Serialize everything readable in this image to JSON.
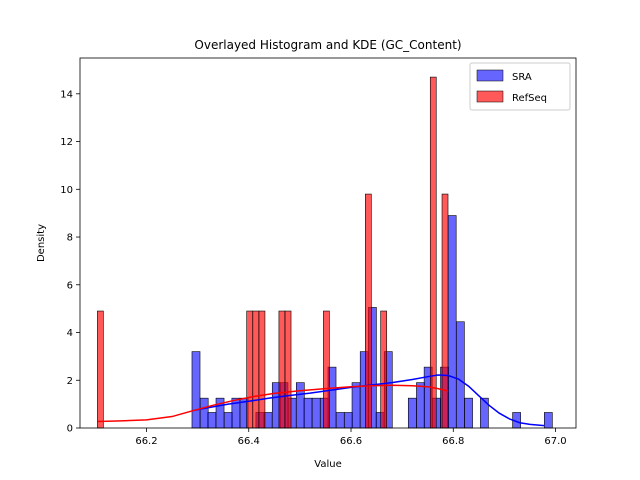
{
  "chart_data": {
    "type": "histogram",
    "title": "Overlayed Histogram and KDE (GC_Content)",
    "xlabel": "Value",
    "ylabel": "Density",
    "xlim": [
      66.07,
      67.04
    ],
    "ylim": [
      0,
      15.5
    ],
    "xticks": [
      66.2,
      66.4,
      66.6,
      66.8,
      67.0
    ],
    "xtick_labels": [
      "66.2",
      "66.4",
      "66.6",
      "66.8",
      "67.0"
    ],
    "yticks": [
      0,
      2,
      4,
      6,
      8,
      10,
      12,
      14
    ],
    "ytick_labels": [
      "0",
      "2",
      "4",
      "6",
      "8",
      "10",
      "12",
      "14"
    ],
    "legend_position": "upper right",
    "grid": false,
    "series": [
      {
        "name": "SRA",
        "color": "#0000ff",
        "alpha": 0.6,
        "bin_width": 0.0157,
        "bins": [
          {
            "x0": 66.289,
            "h": 3.2
          },
          {
            "x0": 66.305,
            "h": 1.25
          },
          {
            "x0": 66.32,
            "h": 0.65
          },
          {
            "x0": 66.336,
            "h": 1.25
          },
          {
            "x0": 66.352,
            "h": 0.65
          },
          {
            "x0": 66.367,
            "h": 1.25
          },
          {
            "x0": 66.383,
            "h": 1.25
          },
          {
            "x0": 66.399,
            "h": 0.0
          },
          {
            "x0": 66.414,
            "h": 0.65
          },
          {
            "x0": 66.43,
            "h": 0.65
          },
          {
            "x0": 66.446,
            "h": 1.9
          },
          {
            "x0": 66.461,
            "h": 1.9
          },
          {
            "x0": 66.477,
            "h": 1.25
          },
          {
            "x0": 66.493,
            "h": 1.9
          },
          {
            "x0": 66.508,
            "h": 1.25
          },
          {
            "x0": 66.524,
            "h": 1.25
          },
          {
            "x0": 66.54,
            "h": 1.25
          },
          {
            "x0": 66.555,
            "h": 2.55
          },
          {
            "x0": 66.571,
            "h": 0.65
          },
          {
            "x0": 66.587,
            "h": 0.65
          },
          {
            "x0": 66.602,
            "h": 1.9
          },
          {
            "x0": 66.618,
            "h": 3.2
          },
          {
            "x0": 66.634,
            "h": 5.05
          },
          {
            "x0": 66.649,
            "h": 0.65
          },
          {
            "x0": 66.665,
            "h": 3.2
          },
          {
            "x0": 66.681,
            "h": 0.0
          },
          {
            "x0": 66.696,
            "h": 0.0
          },
          {
            "x0": 66.712,
            "h": 1.25
          },
          {
            "x0": 66.728,
            "h": 1.9
          },
          {
            "x0": 66.743,
            "h": 2.55
          },
          {
            "x0": 66.759,
            "h": 1.25
          },
          {
            "x0": 66.775,
            "h": 2.55
          },
          {
            "x0": 66.79,
            "h": 8.9
          },
          {
            "x0": 66.806,
            "h": 4.45
          },
          {
            "x0": 66.822,
            "h": 1.25
          },
          {
            "x0": 66.837,
            "h": 0.0
          },
          {
            "x0": 66.853,
            "h": 1.25
          },
          {
            "x0": 66.869,
            "h": 0.0
          },
          {
            "x0": 66.884,
            "h": 0.0
          },
          {
            "x0": 66.9,
            "h": 0.0
          },
          {
            "x0": 66.916,
            "h": 0.65
          },
          {
            "x0": 66.931,
            "h": 0.0
          },
          {
            "x0": 66.947,
            "h": 0.0
          },
          {
            "x0": 66.963,
            "h": 0.0
          },
          {
            "x0": 66.978,
            "h": 0.65
          }
        ],
        "kde": [
          [
            66.289,
            0.72
          ],
          [
            66.32,
            0.85
          ],
          [
            66.36,
            1.0
          ],
          [
            66.4,
            1.12
          ],
          [
            66.44,
            1.25
          ],
          [
            66.48,
            1.36
          ],
          [
            66.52,
            1.46
          ],
          [
            66.56,
            1.58
          ],
          [
            66.6,
            1.7
          ],
          [
            66.64,
            1.8
          ],
          [
            66.68,
            1.9
          ],
          [
            66.72,
            2.03
          ],
          [
            66.75,
            2.15
          ],
          [
            66.77,
            2.22
          ],
          [
            66.79,
            2.2
          ],
          [
            66.81,
            2.05
          ],
          [
            66.83,
            1.75
          ],
          [
            66.85,
            1.35
          ],
          [
            66.87,
            0.95
          ],
          [
            66.89,
            0.62
          ],
          [
            66.91,
            0.38
          ],
          [
            66.93,
            0.22
          ],
          [
            66.95,
            0.15
          ],
          [
            66.978,
            0.1
          ]
        ]
      },
      {
        "name": "RefSeq",
        "color": "#ff0000",
        "alpha": 0.65,
        "bin_width": 0.0117,
        "bins": [
          {
            "x0": 66.104,
            "h": 4.9
          },
          {
            "x0": 66.396,
            "h": 4.9
          },
          {
            "x0": 66.408,
            "h": 4.9
          },
          {
            "x0": 66.42,
            "h": 4.9
          },
          {
            "x0": 66.459,
            "h": 4.9
          },
          {
            "x0": 66.471,
            "h": 4.9
          },
          {
            "x0": 66.546,
            "h": 4.9
          },
          {
            "x0": 66.628,
            "h": 9.8
          },
          {
            "x0": 66.658,
            "h": 4.9
          },
          {
            "x0": 66.755,
            "h": 14.7
          },
          {
            "x0": 66.778,
            "h": 9.8
          }
        ],
        "kde": [
          [
            66.104,
            0.27
          ],
          [
            66.15,
            0.3
          ],
          [
            66.2,
            0.34
          ],
          [
            66.25,
            0.48
          ],
          [
            66.29,
            0.72
          ],
          [
            66.33,
            0.95
          ],
          [
            66.37,
            1.15
          ],
          [
            66.41,
            1.32
          ],
          [
            66.45,
            1.45
          ],
          [
            66.5,
            1.56
          ],
          [
            66.55,
            1.65
          ],
          [
            66.6,
            1.73
          ],
          [
            66.64,
            1.77
          ],
          [
            66.68,
            1.79
          ],
          [
            66.72,
            1.77
          ],
          [
            66.75,
            1.73
          ],
          [
            66.77,
            1.65
          ],
          [
            66.79,
            1.55
          ]
        ]
      }
    ]
  }
}
